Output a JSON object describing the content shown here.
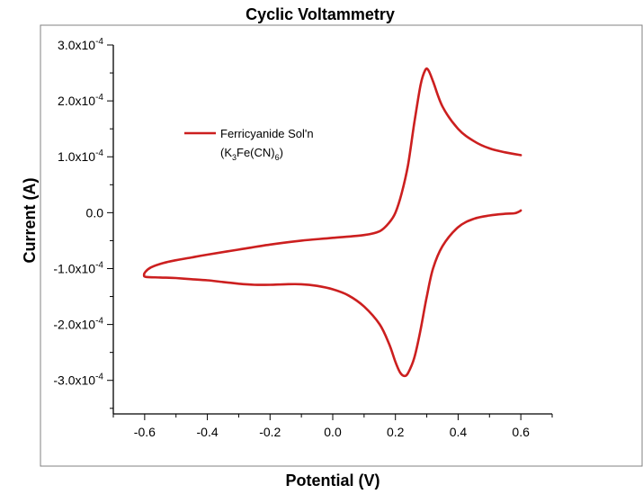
{
  "chart_data": {
    "type": "line",
    "title": "Cyclic Voltammetry",
    "xlabel": "Potential (V)",
    "ylabel": "Current (A)",
    "xlim": [
      -0.7,
      0.7
    ],
    "ylim": [
      -0.00036,
      0.0003
    ],
    "x_ticks": [
      {
        "value": -0.6,
        "label": "-0.6"
      },
      {
        "value": -0.4,
        "label": "-0.4"
      },
      {
        "value": -0.2,
        "label": "-0.2"
      },
      {
        "value": 0.0,
        "label": "0.0"
      },
      {
        "value": 0.2,
        "label": "0.2"
      },
      {
        "value": 0.4,
        "label": "0.4"
      },
      {
        "value": 0.6,
        "label": "0.6"
      }
    ],
    "y_ticks": [
      {
        "value": 0.0003,
        "mantissa": "3.0x10",
        "exp": "-4"
      },
      {
        "value": 0.0002,
        "mantissa": "2.0x10",
        "exp": "-4"
      },
      {
        "value": 0.0001,
        "mantissa": "1.0x10",
        "exp": "-4"
      },
      {
        "value": 0.0,
        "mantissa": "0.0",
        "exp": ""
      },
      {
        "value": -0.0001,
        "mantissa": "-1.0x10",
        "exp": "-4"
      },
      {
        "value": -0.0002,
        "mantissa": "-2.0x10",
        "exp": "-4"
      },
      {
        "value": -0.0003,
        "mantissa": "-3.0x10",
        "exp": "-4"
      }
    ],
    "grid": false,
    "legend_position": "upper-left",
    "series": [
      {
        "name": "Ferricyanide Sol'n",
        "name_line2_parts": [
          "(K",
          "3",
          "Fe(CN)",
          "6",
          ")"
        ],
        "color": "#cc1f1f",
        "points": [
          [
            0.6,
            4e-06
          ],
          [
            0.595,
            2e-06
          ],
          [
            0.58,
            -1e-06
          ],
          [
            0.55,
            -2e-06
          ],
          [
            0.5,
            -5e-06
          ],
          [
            0.45,
            -1.1e-05
          ],
          [
            0.4,
            -2.6e-05
          ],
          [
            0.35,
            -6e-05
          ],
          [
            0.32,
            -0.0001
          ],
          [
            0.3,
            -0.00015
          ],
          [
            0.28,
            -0.00021
          ],
          [
            0.26,
            -0.00026
          ],
          [
            0.24,
            -0.000287
          ],
          [
            0.228,
            -0.000292
          ],
          [
            0.215,
            -0.000286
          ],
          [
            0.2,
            -0.000267
          ],
          [
            0.18,
            -0.000235
          ],
          [
            0.15,
            -0.0002
          ],
          [
            0.1,
            -0.000168
          ],
          [
            0.05,
            -0.000148
          ],
          [
            0.0,
            -0.000137
          ],
          [
            -0.05,
            -0.000131
          ],
          [
            -0.1,
            -0.000128
          ],
          [
            -0.15,
            -0.000128
          ],
          [
            -0.2,
            -0.000129
          ],
          [
            -0.25,
            -0.000129
          ],
          [
            -0.3,
            -0.000127
          ],
          [
            -0.35,
            -0.000124
          ],
          [
            -0.4,
            -0.000121
          ],
          [
            -0.45,
            -0.000119
          ],
          [
            -0.5,
            -0.000117
          ],
          [
            -0.55,
            -0.000116
          ],
          [
            -0.595,
            -0.000115
          ],
          [
            -0.602,
            -0.000112
          ],
          [
            -0.598,
            -0.000106
          ],
          [
            -0.58,
            -9.8e-05
          ],
          [
            -0.54,
            -9e-05
          ],
          [
            -0.5,
            -8.5e-05
          ],
          [
            -0.45,
            -8e-05
          ],
          [
            -0.4,
            -7.5e-05
          ],
          [
            -0.3,
            -6.6e-05
          ],
          [
            -0.2,
            -5.7e-05
          ],
          [
            -0.1,
            -5e-05
          ],
          [
            0.0,
            -4.5e-05
          ],
          [
            0.1,
            -4e-05
          ],
          [
            0.15,
            -3.3e-05
          ],
          [
            0.18,
            -1.8e-05
          ],
          [
            0.2,
            0.0
          ],
          [
            0.22,
            3.5e-05
          ],
          [
            0.24,
            8.5e-05
          ],
          [
            0.26,
            0.00016
          ],
          [
            0.28,
            0.000228
          ],
          [
            0.295,
            0.000255
          ],
          [
            0.305,
            0.000255
          ],
          [
            0.32,
            0.000235
          ],
          [
            0.35,
            0.00019
          ],
          [
            0.4,
            0.00015
          ],
          [
            0.45,
            0.000128
          ],
          [
            0.5,
            0.000115
          ],
          [
            0.55,
            0.000108
          ],
          [
            0.6,
            0.000103
          ]
        ]
      }
    ]
  }
}
